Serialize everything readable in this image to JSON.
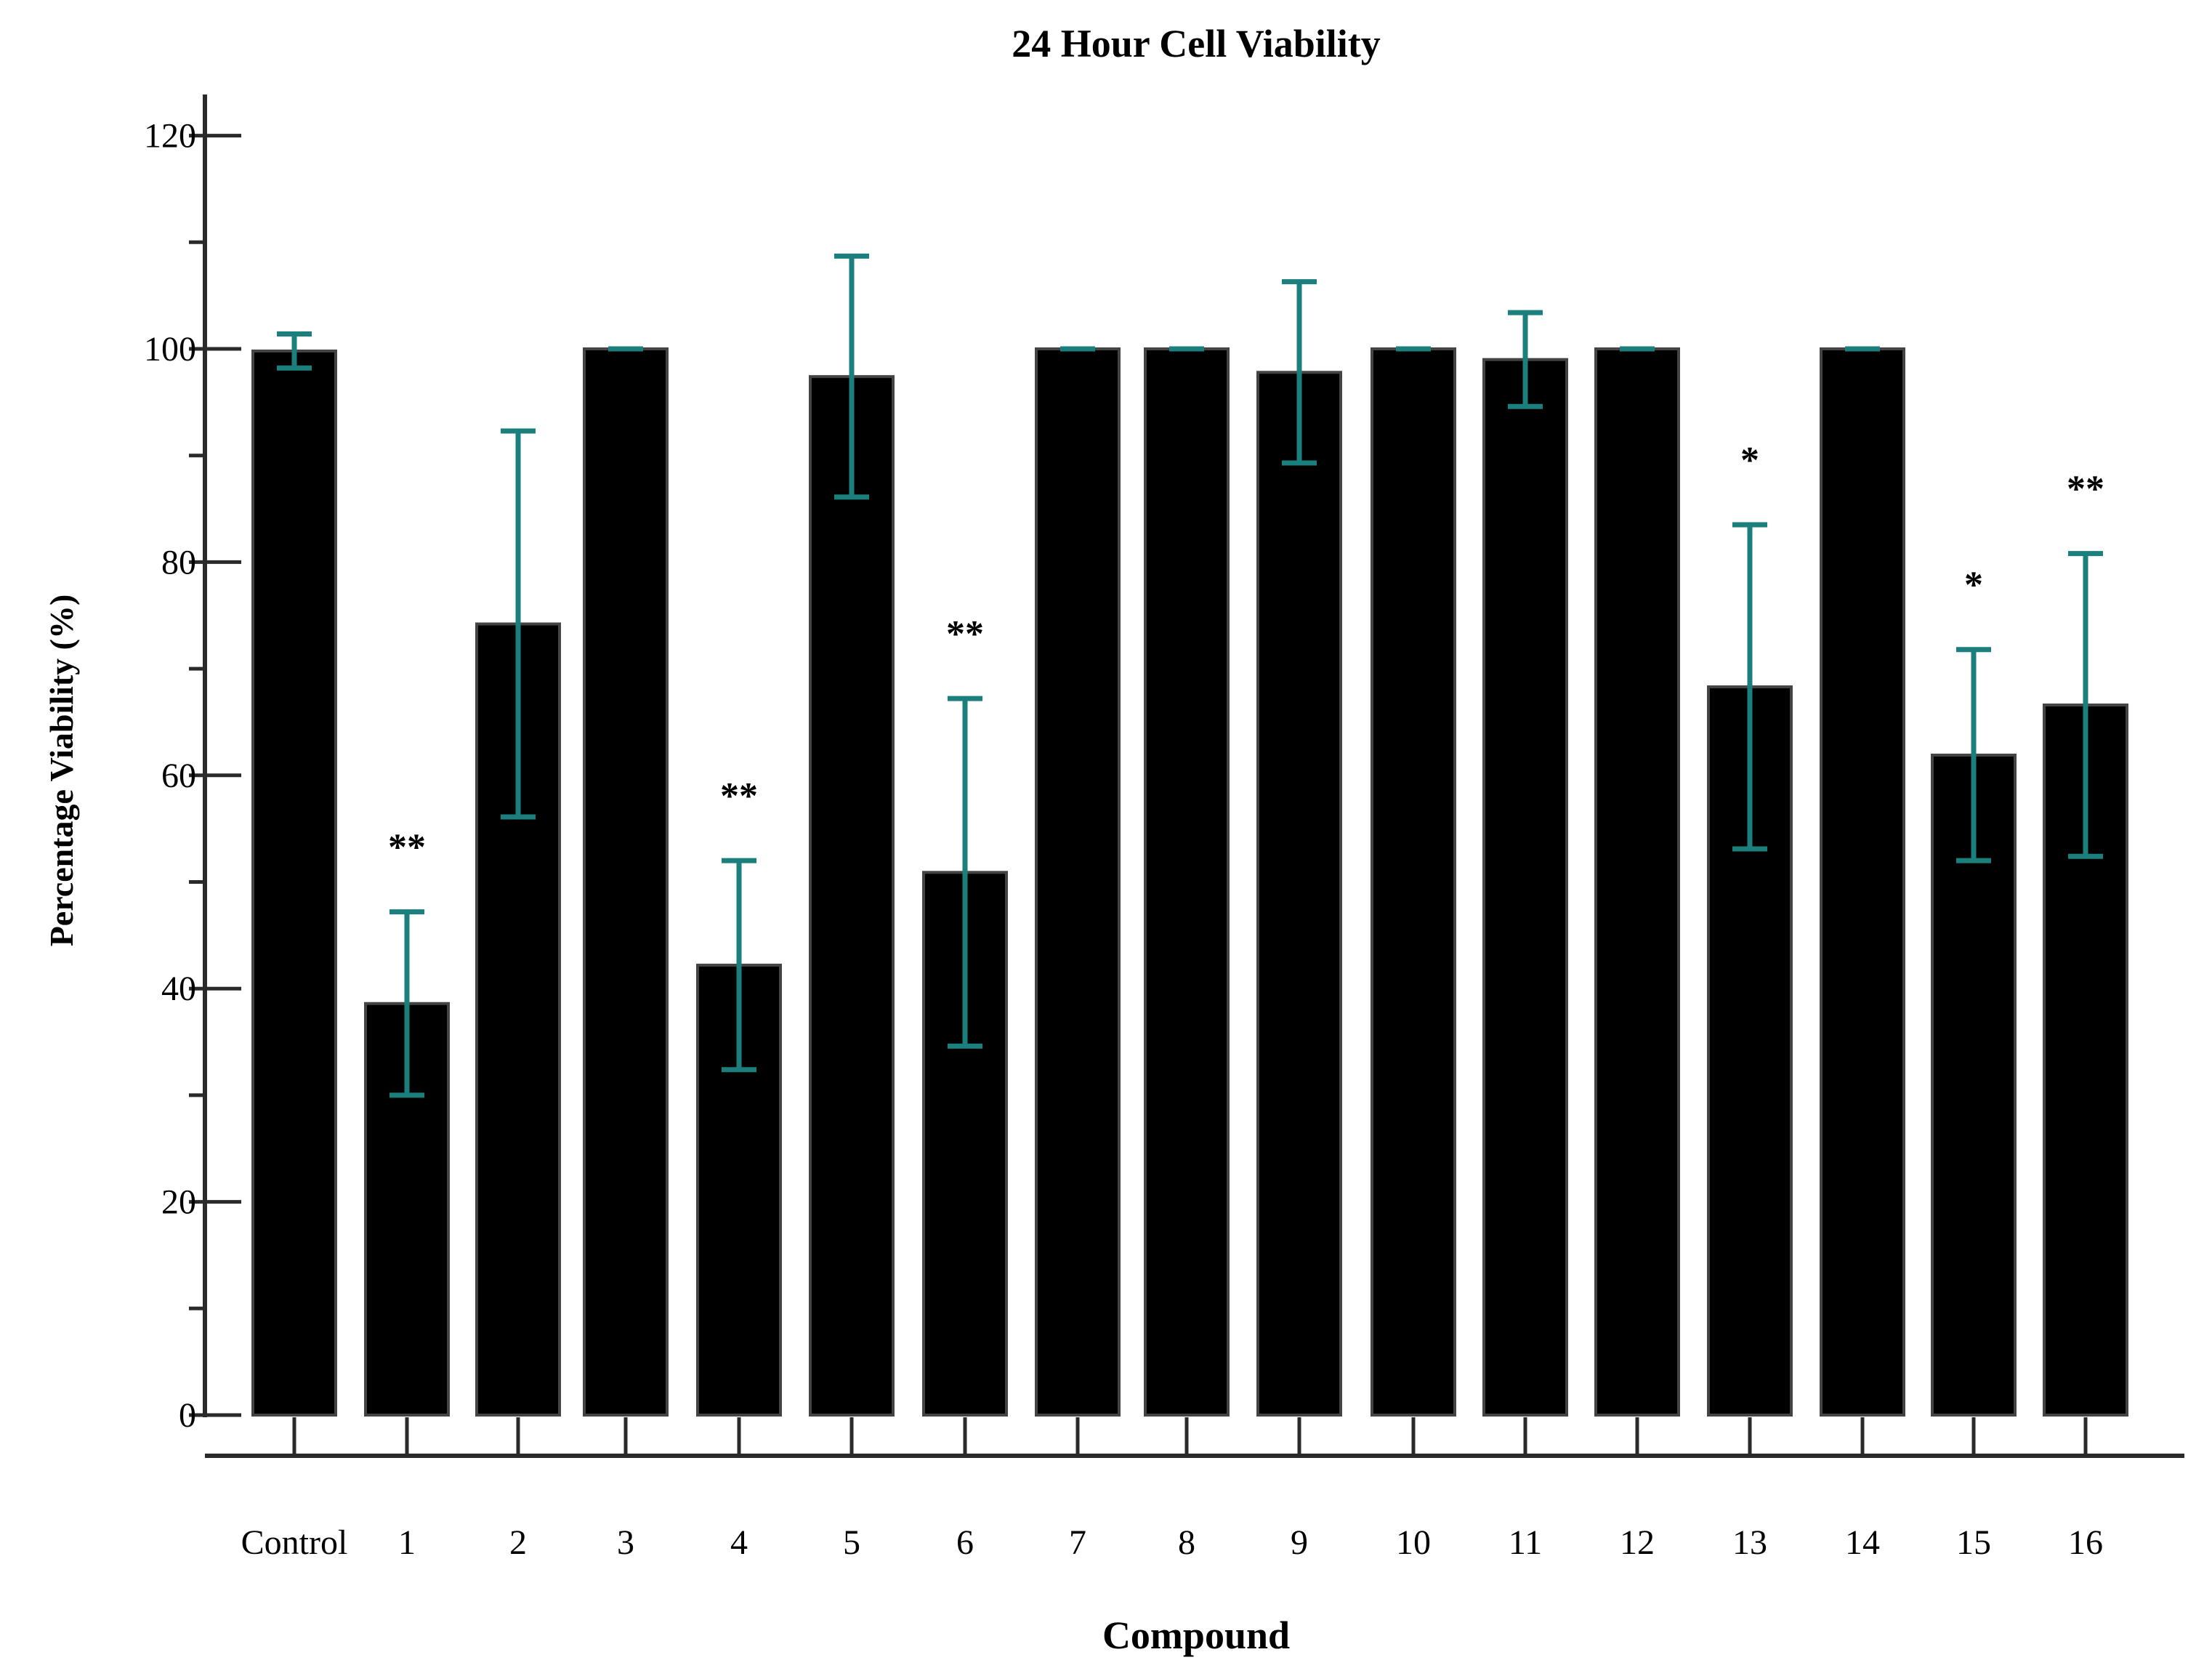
{
  "chart_data": {
    "type": "bar",
    "title": "24 Hour Cell Viability",
    "xlabel": "Compound",
    "ylabel": "Percentage Viability (%)",
    "ylim": [
      0,
      120
    ],
    "yticks": [
      0,
      20,
      40,
      60,
      80,
      100,
      120
    ],
    "grid": false,
    "categories": [
      "Control",
      "1",
      "2",
      "3",
      "4",
      "5",
      "6",
      "7",
      "8",
      "9",
      "10",
      "11",
      "12",
      "13",
      "14",
      "15",
      "16"
    ],
    "values": [
      99.8,
      38.6,
      74.2,
      100,
      42.2,
      97.4,
      50.9,
      100,
      100,
      97.8,
      100,
      99.0,
      100,
      68.3,
      100,
      61.9,
      66.6
    ],
    "error": [
      1.6,
      8.6,
      18.1,
      0,
      9.8,
      11.3,
      16.3,
      0,
      0,
      8.5,
      0,
      4.4,
      0,
      15.2,
      0,
      9.9,
      14.2
    ],
    "significance": [
      "",
      "**",
      "",
      "",
      "**",
      "",
      "**",
      "",
      "",
      "",
      "",
      "",
      "",
      "*",
      "",
      "*",
      "**"
    ],
    "colors": {
      "bar": "#000000",
      "bar_edge": "#444444",
      "error": "#1a7f7d",
      "axis": "#2a2a2a"
    }
  }
}
